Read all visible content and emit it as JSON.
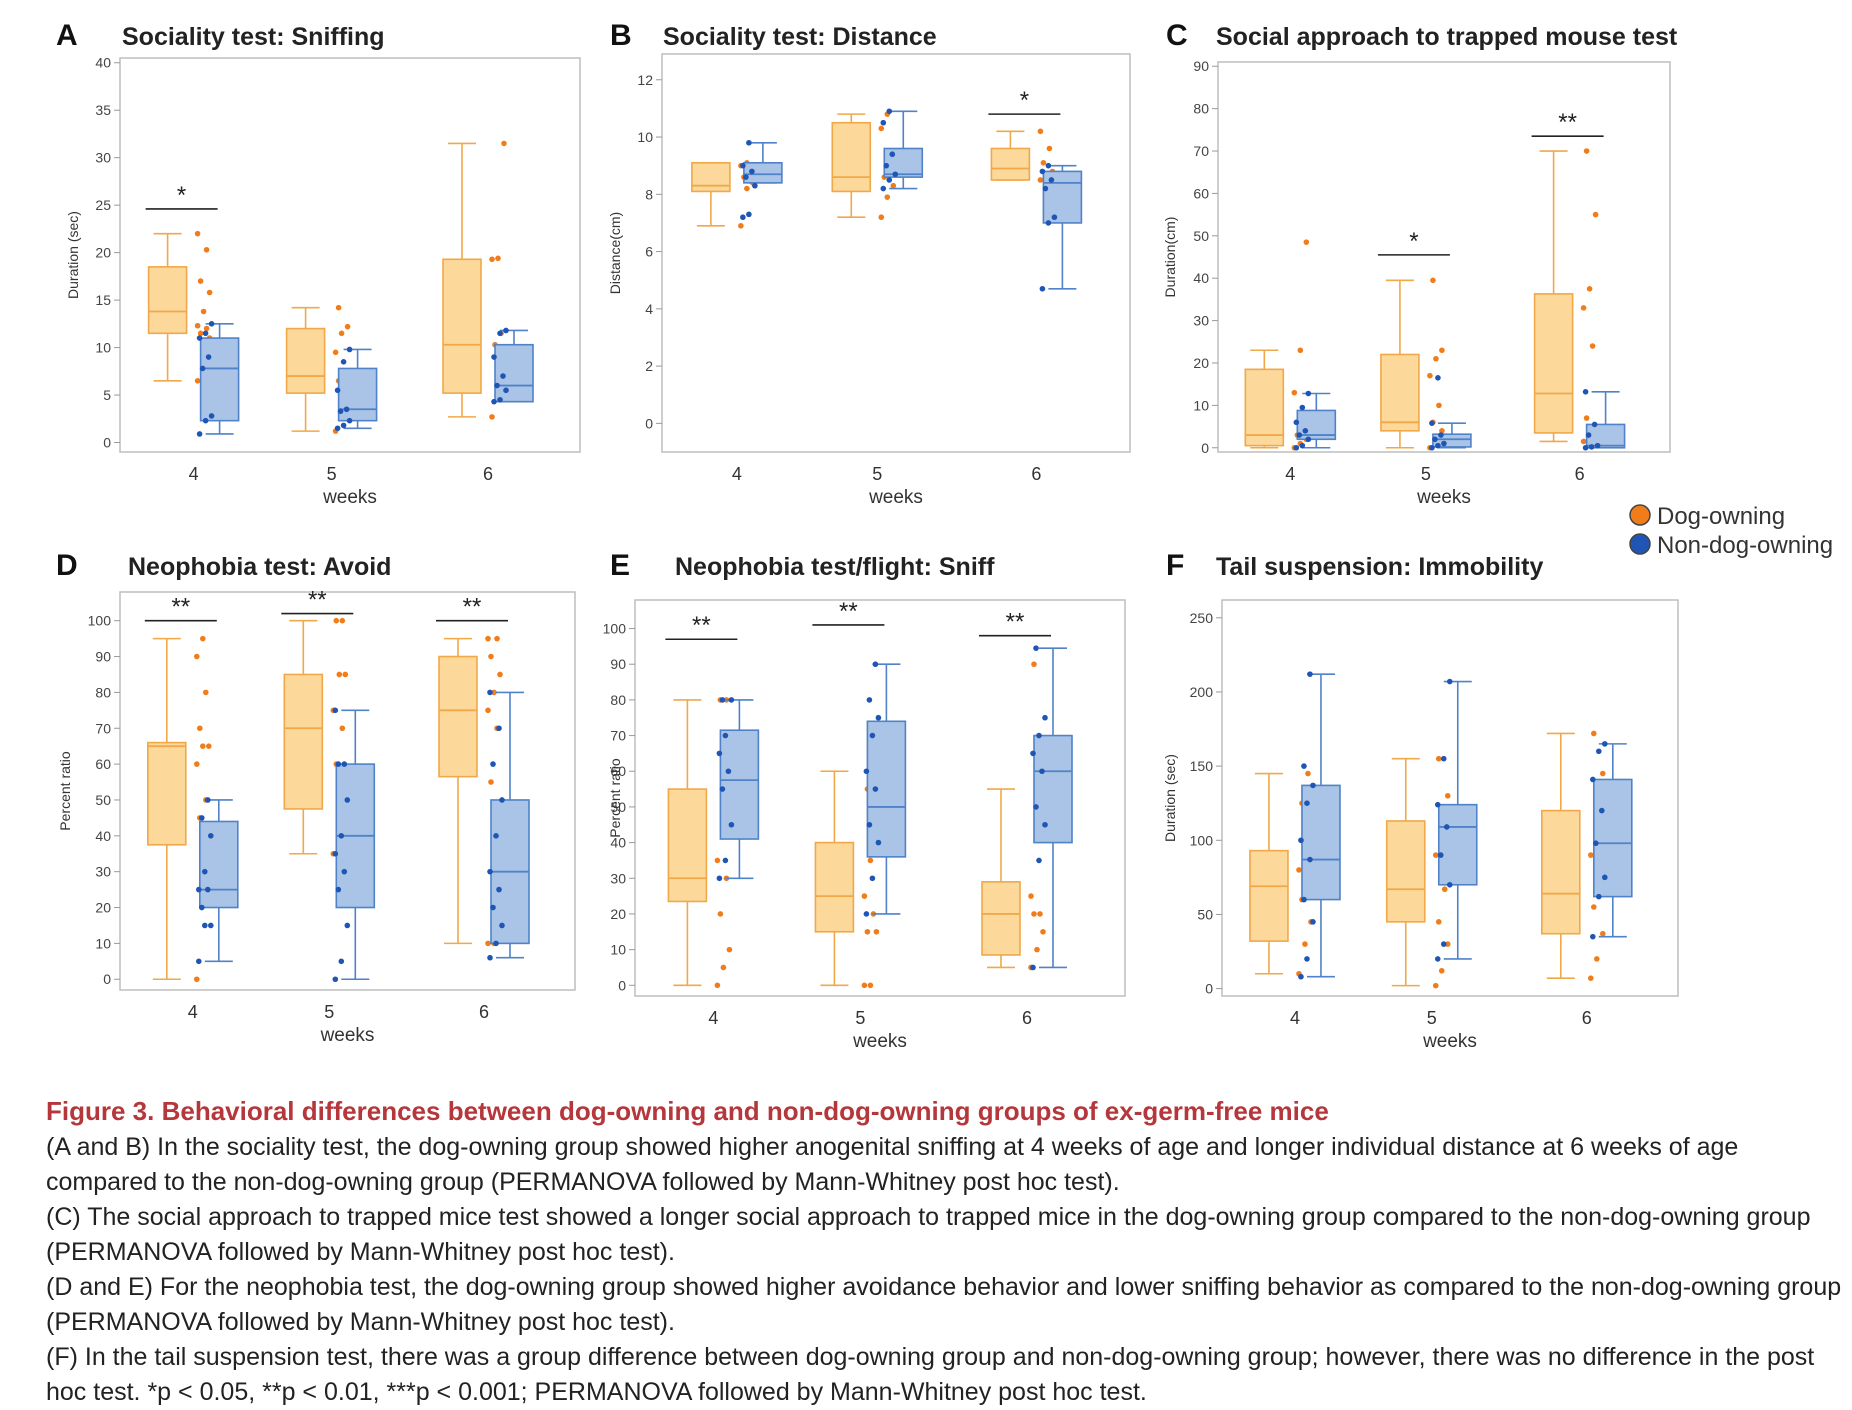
{
  "legend": {
    "items": [
      {
        "label": "Dog-owning",
        "color": "#f07d1a"
      },
      {
        "label": "Non-dog-owning",
        "color": "#1f55b5"
      }
    ]
  },
  "colors": {
    "dog_box_fill": "#fcd89a",
    "dog_box_edge": "#f0a848",
    "nondog_box_fill": "#a9c4e6",
    "nondog_box_edge": "#4f82c8",
    "dog_point": "#f07d1a",
    "nondog_point": "#1f55b5",
    "caption_title": "#b5373b"
  },
  "chart_data": [
    {
      "panel": "A",
      "type": "box",
      "title": "Sociality test: Sniffing",
      "xlabel": "weeks",
      "ylabel": "Duration (sec)",
      "categories": [
        "4",
        "5",
        "6"
      ],
      "ylim": [
        -1,
        40.5
      ],
      "yticks": [
        0,
        5,
        10,
        15,
        20,
        25,
        30,
        35,
        40
      ],
      "series": [
        {
          "name": "Dog-owning",
          "boxes": [
            {
              "whislo": 6.5,
              "q1": 11.5,
              "med": 13.8,
              "q3": 18.5,
              "whishi": 22
            },
            {
              "whislo": 1.2,
              "q1": 5.2,
              "med": 7,
              "q3": 12,
              "whishi": 14.2
            },
            {
              "whislo": 2.7,
              "q1": 5.2,
              "med": 10.3,
              "q3": 19.3,
              "whishi": 31.5
            }
          ],
          "points": [
            [
              6.5,
              9.5,
              11,
              11.5,
              12,
              12.3,
              13.8,
              15.8,
              17,
              20.3,
              22
            ],
            [
              1.2,
              3.5,
              5.5,
              6.5,
              7,
              9.5,
              11.5,
              12.2,
              14.2
            ],
            [
              2.7,
              5.3,
              7.5,
              10.3,
              11.5,
              19.3,
              19.4,
              31.5
            ]
          ]
        },
        {
          "name": "Non-dog-owning",
          "boxes": [
            {
              "whislo": 0.9,
              "q1": 2.3,
              "med": 7.8,
              "q3": 11,
              "whishi": 12.5
            },
            {
              "whislo": 1.5,
              "q1": 2.3,
              "med": 3.5,
              "q3": 7.8,
              "whishi": 9.8
            },
            {
              "whislo": 4.3,
              "q1": 4.3,
              "med": 6,
              "q3": 10.3,
              "whishi": 11.8
            }
          ],
          "points": [
            [
              0.9,
              2.3,
              2.8,
              7.8,
              9,
              11,
              11.5,
              12.5
            ],
            [
              1.5,
              1.8,
              2.3,
              3.3,
              3.5,
              5.5,
              8.5,
              9.8
            ],
            [
              4.3,
              4.5,
              5.5,
              6,
              7,
              9,
              11.5,
              11.8
            ]
          ]
        }
      ],
      "significance": [
        {
          "category": "4",
          "label": "*",
          "y": 24.6
        }
      ]
    },
    {
      "panel": "B",
      "type": "box",
      "title": "Sociality test: Distance",
      "xlabel": "weeks",
      "ylabel": "Distance(cm)",
      "categories": [
        "4",
        "5",
        "6"
      ],
      "ylim": [
        -1,
        12.9
      ],
      "yticks": [
        0,
        2,
        4,
        6,
        8,
        10,
        12
      ],
      "series": [
        {
          "name": "Dog-owning",
          "boxes": [
            {
              "whislo": 6.9,
              "q1": 8.1,
              "med": 8.3,
              "q3": 9.1,
              "whishi": 9.1
            },
            {
              "whislo": 7.2,
              "q1": 8.1,
              "med": 8.6,
              "q3": 10.5,
              "whishi": 10.8
            },
            {
              "whislo": 8.5,
              "q1": 8.5,
              "med": 8.9,
              "q3": 9.6,
              "whishi": 10.2
            }
          ],
          "points": [
            [
              6.9,
              8.2,
              8.4,
              8.6,
              8.9,
              9.0,
              9.1
            ],
            [
              7.2,
              7.9,
              8.3,
              8.6,
              9.3,
              10.3,
              10.8
            ],
            [
              8.5,
              8.7,
              8.8,
              9.1,
              9.6,
              10.2
            ]
          ]
        },
        {
          "name": "Non-dog-owning",
          "boxes": [
            {
              "whislo": 8.4,
              "q1": 8.4,
              "med": 8.7,
              "q3": 9.1,
              "whishi": 9.8
            },
            {
              "whislo": 8.2,
              "q1": 8.6,
              "med": 8.7,
              "q3": 9.6,
              "whishi": 10.9
            },
            {
              "whislo": 4.7,
              "q1": 7.0,
              "med": 8.4,
              "q3": 8.8,
              "whishi": 9.0
            }
          ],
          "points": [
            [
              7.2,
              7.3,
              8.3,
              8.6,
              8.8,
              9.0,
              9.8
            ],
            [
              8.2,
              8.5,
              8.7,
              9.0,
              9.4,
              10.5,
              10.9
            ],
            [
              4.7,
              7.0,
              7.2,
              8.2,
              8.5,
              8.8,
              9.0
            ]
          ]
        }
      ],
      "significance": [
        {
          "category": "6",
          "label": "*",
          "y": 10.8
        }
      ]
    },
    {
      "panel": "C",
      "type": "box",
      "title": "Social approach to trapped mouse test",
      "xlabel": "weeks",
      "ylabel": "Duration(cm)",
      "categories": [
        "4",
        "5",
        "6"
      ],
      "ylim": [
        -1,
        91
      ],
      "yticks": [
        0,
        10,
        20,
        30,
        40,
        50,
        60,
        70,
        80,
        90
      ],
      "series": [
        {
          "name": "Dog-owning",
          "boxes": [
            {
              "whislo": 0,
              "q1": 0.5,
              "med": 3,
              "q3": 18.5,
              "whishi": 23
            },
            {
              "whislo": 0,
              "q1": 4,
              "med": 6,
              "q3": 22,
              "whishi": 39.5
            },
            {
              "whislo": 1.5,
              "q1": 3.5,
              "med": 12.8,
              "q3": 36.3,
              "whishi": 70
            }
          ],
          "points": [
            [
              0,
              1,
              2,
              3,
              5,
              13,
              23,
              48.5
            ],
            [
              0,
              2,
              4,
              6,
              10,
              17,
              21,
              23,
              39.5
            ],
            [
              1.5,
              3.5,
              5,
              7,
              24,
              33,
              37.5,
              55,
              70
            ]
          ]
        },
        {
          "name": "Non-dog-owning",
          "boxes": [
            {
              "whislo": 0,
              "q1": 2,
              "med": 3,
              "q3": 8.8,
              "whishi": 12.8
            },
            {
              "whislo": 0,
              "q1": 0.2,
              "med": 2,
              "q3": 3.2,
              "whishi": 5.8
            },
            {
              "whislo": 0,
              "q1": 0,
              "med": 0.5,
              "q3": 5.5,
              "whishi": 13.2
            }
          ],
          "points": [
            [
              0,
              0.5,
              2,
              3,
              4,
              6,
              9.5,
              12.8
            ],
            [
              0,
              0.5,
              1,
              2,
              3,
              5.8,
              16.5
            ],
            [
              0,
              0.2,
              0.5,
              3,
              5.5,
              13.2
            ]
          ]
        }
      ],
      "significance": [
        {
          "category": "5",
          "label": "*",
          "y": 45.5
        },
        {
          "category": "6",
          "label": "**",
          "y": 73.5
        }
      ]
    },
    {
      "panel": "D",
      "type": "box",
      "title": "Neophobia test: Avoid",
      "xlabel": "weeks",
      "ylabel": "Percent ratio",
      "categories": [
        "4",
        "5",
        "6"
      ],
      "ylim": [
        -3,
        108
      ],
      "yticks": [
        0,
        10,
        20,
        30,
        40,
        50,
        60,
        70,
        80,
        90,
        100
      ],
      "series": [
        {
          "name": "Dog-owning",
          "boxes": [
            {
              "whislo": 0,
              "q1": 37.5,
              "med": 65,
              "q3": 66,
              "whishi": 95
            },
            {
              "whislo": 35,
              "q1": 47.5,
              "med": 70,
              "q3": 85,
              "whishi": 100
            },
            {
              "whislo": 10,
              "q1": 56.5,
              "med": 75,
              "q3": 90,
              "whishi": 95
            }
          ],
          "points": [
            [
              0,
              25,
              40,
              45,
              50,
              60,
              65,
              65,
              70,
              80,
              90,
              95
            ],
            [
              35,
              40,
              45,
              60,
              70,
              75,
              85,
              85,
              100,
              100
            ],
            [
              10,
              10,
              45,
              55,
              70,
              75,
              80,
              85,
              90,
              95,
              95
            ]
          ]
        },
        {
          "name": "Non-dog-owning",
          "boxes": [
            {
              "whislo": 5,
              "q1": 20,
              "med": 25,
              "q3": 44,
              "whishi": 50
            },
            {
              "whislo": 0,
              "q1": 20,
              "med": 40,
              "q3": 60,
              "whishi": 75
            },
            {
              "whislo": 6,
              "q1": 10,
              "med": 30,
              "q3": 50,
              "whishi": 80
            }
          ],
          "points": [
            [
              5,
              15,
              15,
              20,
              25,
              25,
              30,
              40,
              45,
              50
            ],
            [
              0,
              5,
              15,
              25,
              30,
              35,
              40,
              50,
              60,
              60,
              75
            ],
            [
              6,
              10,
              15,
              20,
              25,
              30,
              40,
              50,
              60,
              70,
              80
            ]
          ]
        }
      ],
      "significance": [
        {
          "category": "4",
          "label": "**",
          "y": 100
        },
        {
          "category": "5",
          "label": "**",
          "y": 102
        },
        {
          "category": "6",
          "label": "**",
          "y": 100
        }
      ]
    },
    {
      "panel": "E",
      "type": "box",
      "title": "Neophobia test/flight: Sniff",
      "xlabel": "weeks",
      "ylabel": "Percent ratio",
      "categories": [
        "4",
        "5",
        "6"
      ],
      "ylim": [
        -3,
        108
      ],
      "yticks": [
        0,
        10,
        20,
        30,
        40,
        50,
        60,
        70,
        80,
        90,
        100
      ],
      "series": [
        {
          "name": "Dog-owning",
          "boxes": [
            {
              "whislo": 0,
              "q1": 23.5,
              "med": 30,
              "q3": 55,
              "whishi": 80
            },
            {
              "whislo": 0,
              "q1": 15,
              "med": 25,
              "q3": 40,
              "whishi": 60
            },
            {
              "whislo": 5,
              "q1": 8.5,
              "med": 20,
              "q3": 29,
              "whishi": 55
            }
          ],
          "points": [
            [
              0,
              5,
              10,
              20,
              30,
              35,
              55,
              65,
              80,
              80
            ],
            [
              0,
              0,
              15,
              15,
              20,
              25,
              35,
              40,
              55,
              60
            ],
            [
              5,
              10,
              15,
              20,
              20,
              25,
              45,
              55,
              90
            ]
          ]
        },
        {
          "name": "Non-dog-owning",
          "boxes": [
            {
              "whislo": 30,
              "q1": 41,
              "med": 57.5,
              "q3": 71.5,
              "whishi": 80
            },
            {
              "whislo": 20,
              "q1": 36,
              "med": 50,
              "q3": 74,
              "whishi": 90
            },
            {
              "whislo": 5,
              "q1": 40,
              "med": 60,
              "q3": 70,
              "whishi": 94.5
            }
          ],
          "points": [
            [
              30,
              35,
              45,
              55,
              60,
              65,
              70,
              80,
              80
            ],
            [
              20,
              30,
              40,
              45,
              55,
              60,
              70,
              75,
              80,
              90
            ],
            [
              5,
              35,
              45,
              50,
              60,
              65,
              70,
              75,
              94.5
            ]
          ]
        }
      ],
      "significance": [
        {
          "category": "4",
          "label": "**",
          "y": 97
        },
        {
          "category": "5",
          "label": "**",
          "y": 101
        },
        {
          "category": "6",
          "label": "**",
          "y": 98
        }
      ]
    },
    {
      "panel": "F",
      "type": "box",
      "title": "Tail suspension: Immobility",
      "xlabel": "weeks",
      "ylabel": "Duration (sec)",
      "categories": [
        "4",
        "5",
        "6"
      ],
      "ylim": [
        -5,
        262
      ],
      "yticks": [
        0,
        50,
        100,
        150,
        200,
        250
      ],
      "series": [
        {
          "name": "Dog-owning",
          "boxes": [
            {
              "whislo": 10,
              "q1": 32,
              "med": 69,
              "q3": 93,
              "whishi": 145
            },
            {
              "whislo": 2,
              "q1": 45,
              "med": 67,
              "q3": 113,
              "whishi": 155
            },
            {
              "whislo": 7,
              "q1": 37,
              "med": 64,
              "q3": 120,
              "whishi": 172
            }
          ],
          "points": [
            [
              10,
              30,
              45,
              60,
              69,
              80,
              93,
              110,
              125,
              145
            ],
            [
              2,
              12,
              30,
              45,
              67,
              90,
              113,
              130,
              155
            ],
            [
              7,
              20,
              37,
              55,
              64,
              90,
              120,
              145,
              172
            ]
          ]
        },
        {
          "name": "Non-dog-owning",
          "boxes": [
            {
              "whislo": 8,
              "q1": 60,
              "med": 87,
              "q3": 137,
              "whishi": 212
            },
            {
              "whislo": 20,
              "q1": 70,
              "med": 109,
              "q3": 124,
              "whishi": 207
            },
            {
              "whislo": 35,
              "q1": 62,
              "med": 98,
              "q3": 141,
              "whishi": 165
            }
          ],
          "points": [
            [
              8,
              20,
              45,
              60,
              87,
              100,
              125,
              137,
              150,
              212
            ],
            [
              20,
              30,
              70,
              90,
              109,
              124,
              155,
              207
            ],
            [
              35,
              62,
              75,
              98,
              120,
              141,
              160,
              165
            ]
          ]
        }
      ],
      "significance": []
    }
  ],
  "caption": {
    "title": "Figure 3.  Behavioral differences between dog-owning and non-dog-owning groups of ex-germ-free mice",
    "paragraphs": [
      "(A and B) In the sociality test, the dog-owning group showed higher anogenital sniffing at 4 weeks of age and longer individual distance at 6 weeks of age compared to the non-dog-owning group (PERMANOVA followed by Mann-Whitney post hoc test).",
      "(C) The social approach to trapped mice test showed a longer social approach to trapped mice in the dog-owning group compared to the non-dog-owning group (PERMANOVA followed by Mann-Whitney post hoc test).",
      "(D and E) For the neophobia test, the dog-owning group showed higher avoidance behavior and lower sniffing behavior as compared to the non-dog-owning group (PERMANOVA followed by Mann-Whitney post hoc test).",
      "(F) In the tail suspension test, there was a group difference between dog-owning group and non-dog-owning group; however, there was no difference in the post hoc test. *p < 0.05, **p < 0.01, ***p < 0.001; PERMANOVA followed by Mann-Whitney post hoc test."
    ]
  }
}
